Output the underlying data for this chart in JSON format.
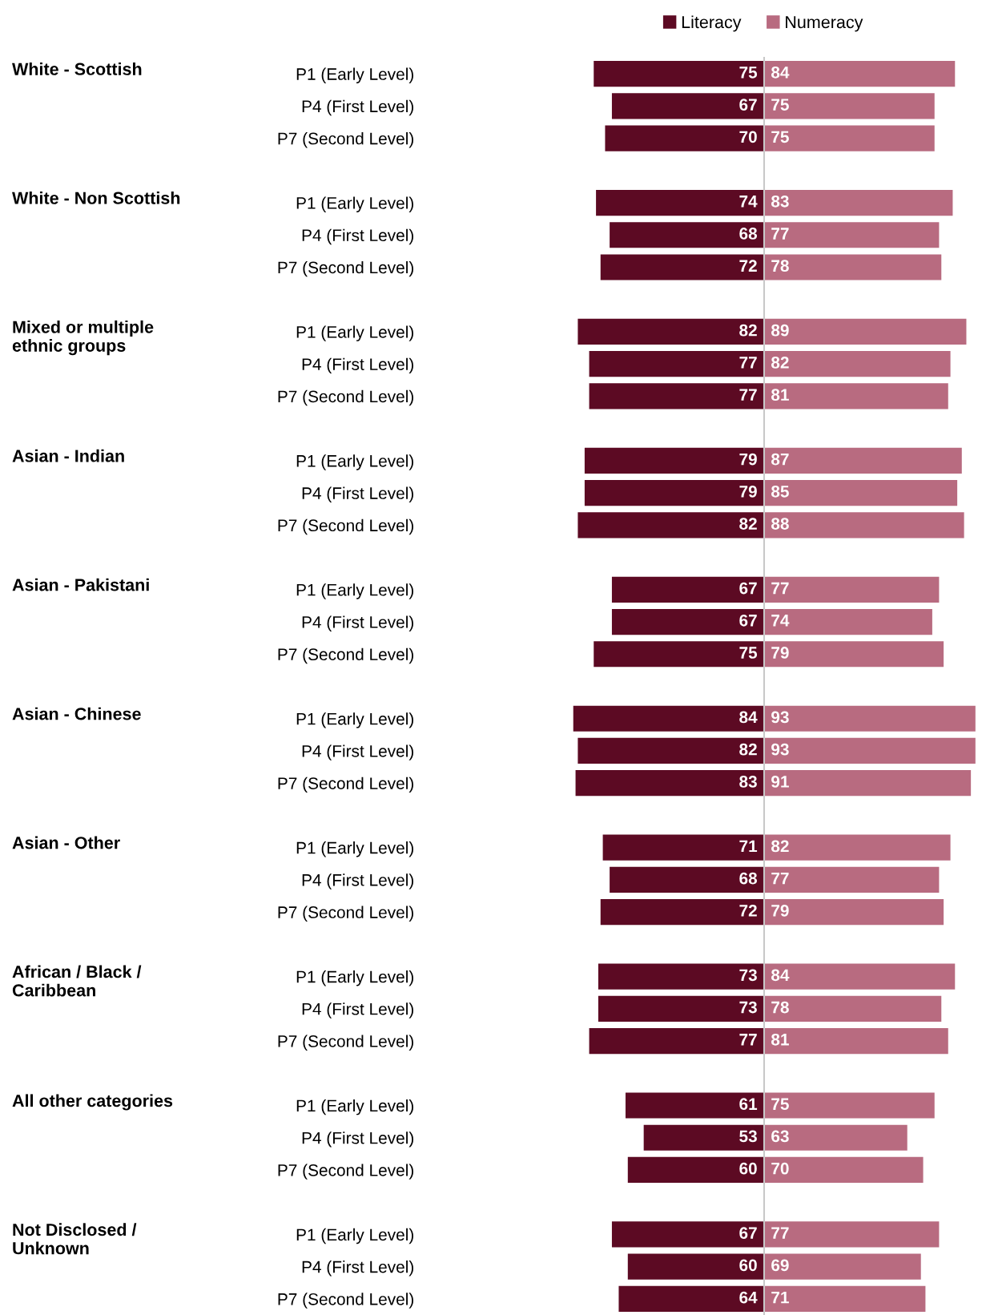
{
  "chart_data": [
    {
      "type": "bar",
      "orientation": "horizontal",
      "tick_labels": "y",
      "data_labels": true,
      "legend": "top",
      "categories": [
        "P1 (Early Level)",
        "P4 (First Level)",
        "P7 (Second Level)",
        null,
        "P1 (Early Level)",
        "P4 (First Level)",
        "P7 (Second Level)",
        null,
        "P1 (Early Level)",
        "P4 (First Level)",
        "P7 (Second Level)",
        null,
        "P1 (Early Level)",
        "P4 (First Level)",
        "P7 (Second Level)",
        null,
        "P1 (Early Level)",
        "P4 (First Level)",
        "P7 (Second Level)",
        null,
        "P1 (Early Level)",
        "P4 (First Level)",
        "P7 (Second Level)",
        null,
        "P1 (Early Level)",
        "P4 (First Level)",
        "P7 (Second Level)",
        null,
        "P1 (Early Level)",
        "P4 (First Level)",
        "P7 (Second Level)",
        null,
        "P1 (Early Level)",
        "P4 (First Level)",
        "P7 (Second Level)",
        null,
        "P1 (Early Level)",
        "P4 (First Level)",
        "P7 (Second Level)"
      ],
      "series": [
        {
          "name": "Literacy",
          "color": "#5c0a23",
          "values": [
            75,
            67,
            70,
            null,
            74,
            68,
            72,
            null,
            82,
            77,
            77,
            null,
            79,
            79,
            82,
            null,
            67,
            67,
            75,
            null,
            84,
            82,
            83,
            null,
            71,
            68,
            72,
            null,
            73,
            73,
            77,
            null,
            61,
            53,
            60,
            null,
            67,
            60,
            64
          ]
        }
      ],
      "annotations": [
        "White - Scottish",
        "White - Non Scottish",
        "Mixed or multiple\nethnic groups",
        "Asian - Indian",
        "Asian - Pakistani",
        "Asian - Chinese",
        "Asian - Other",
        "African / Black /\nCaribbean",
        "All other categories",
        "Not Disclosed /\nUnknown"
      ]
    },
    {
      "type": "bar",
      "orientation": "horizontal",
      "tick_labels": false,
      "data_labels": true,
      "legend": "top",
      "categories": [
        null,
        null,
        null,
        null,
        null,
        null,
        null,
        null,
        null,
        null,
        null,
        null,
        null,
        null,
        null,
        null,
        null,
        null,
        null,
        null,
        null,
        null,
        null,
        null,
        null,
        null,
        null,
        null,
        null,
        null,
        null,
        null,
        null,
        null,
        null,
        null,
        null,
        null,
        null
      ],
      "series": [
        {
          "name": "Numeracy",
          "color": "#b86b80",
          "values": [
            84,
            75,
            75,
            null,
            83,
            77,
            78,
            null,
            89,
            82,
            81,
            null,
            87,
            85,
            88,
            null,
            77,
            74,
            79,
            null,
            93,
            93,
            91,
            null,
            82,
            77,
            79,
            null,
            84,
            78,
            81,
            null,
            75,
            63,
            70,
            null,
            77,
            69,
            71
          ]
        }
      ]
    }
  ]
}
